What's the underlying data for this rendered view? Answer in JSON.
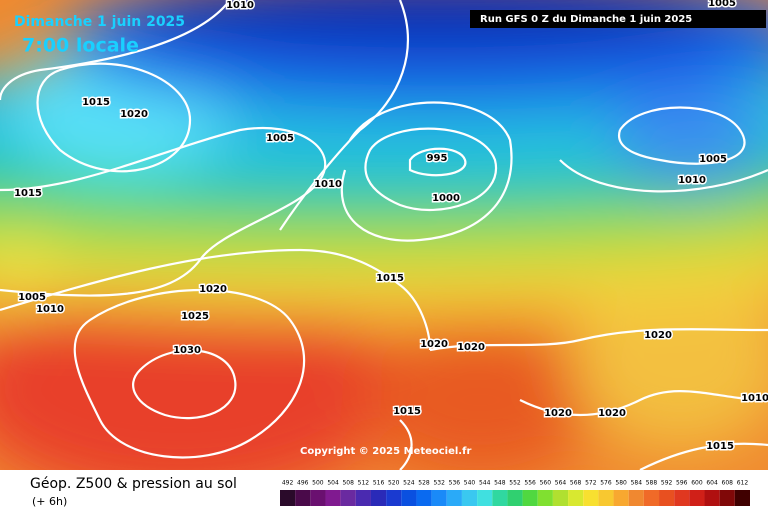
{
  "header": {
    "title": "Dimanche 1 juin 2025",
    "time": "7:00 locale",
    "run": "Run GFS 0 Z du Dimanche 1 juin 2025"
  },
  "copyright": "Copyright © 2025 Meteociel.fr",
  "footer": {
    "title": "Géop. Z500 & pression au sol",
    "step": "(+ 6h)"
  },
  "legend": {
    "labels": [
      492,
      496,
      500,
      504,
      508,
      512,
      516,
      520,
      524,
      528,
      532,
      536,
      540,
      544,
      548,
      552,
      556,
      560,
      564,
      568,
      572,
      576,
      580,
      584,
      588,
      592,
      596,
      600,
      604,
      608,
      612
    ]
  },
  "isobar_labels": [
    1010,
    1005,
    1015,
    1020,
    1005,
    995,
    1010,
    1000,
    1015,
    1005,
    1010,
    1015,
    1020,
    1005,
    1010,
    1025,
    1030,
    1020,
    1020,
    1020,
    1015,
    1020,
    1020,
    1010,
    1015
  ]
}
